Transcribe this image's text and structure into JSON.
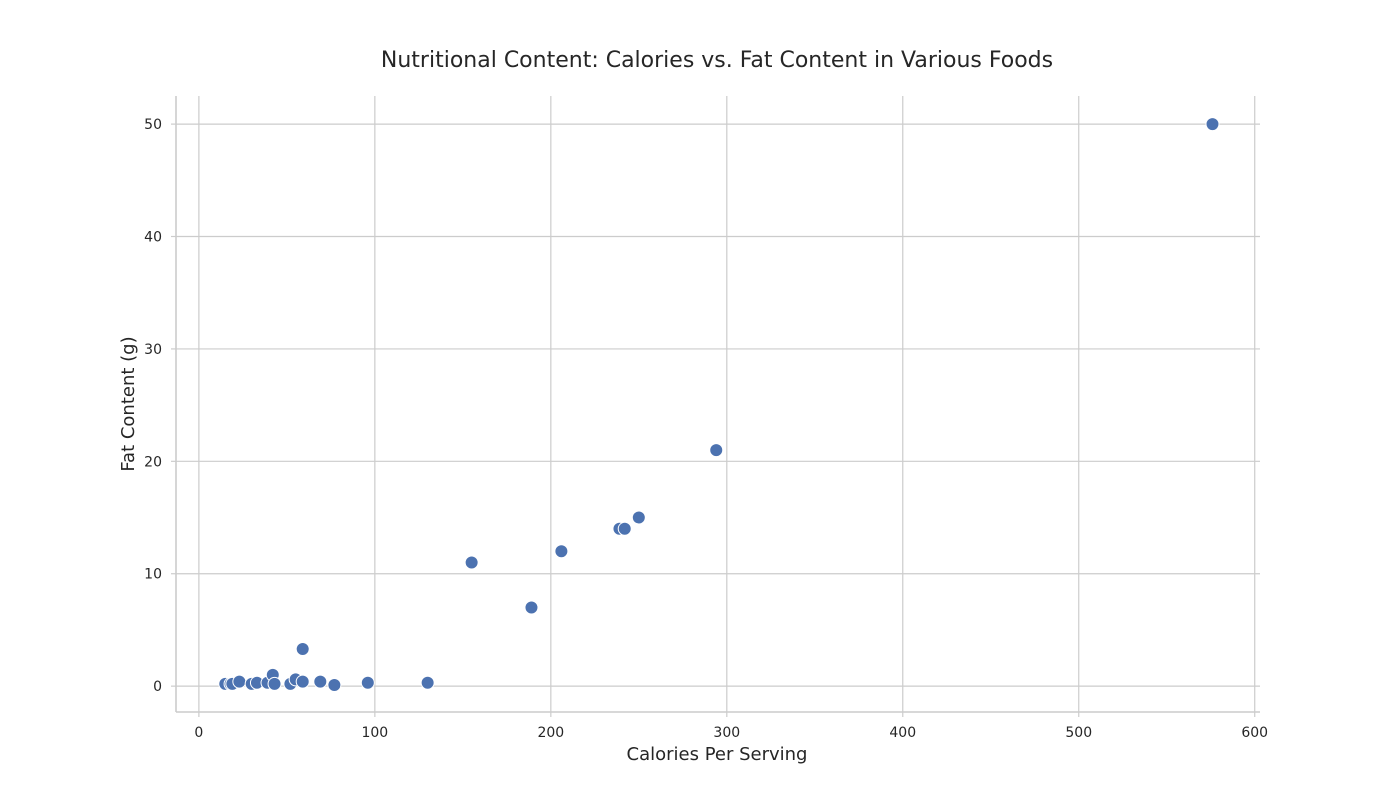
{
  "chart_data": {
    "type": "scatter",
    "title": "Nutritional Content: Calories vs. Fat Content in Various Foods",
    "xlabel": "Calories Per Serving",
    "ylabel": "Fat Content (g)",
    "xlim": [
      -13,
      603
    ],
    "ylim": [
      -2.3,
      52.5
    ],
    "xticks": [
      0,
      100,
      200,
      300,
      400,
      500,
      600
    ],
    "yticks": [
      0,
      10,
      20,
      30,
      40,
      50
    ],
    "grid": true,
    "marker_color": "#4c72b0",
    "marker_edge_color": "#ffffff",
    "points": [
      {
        "x": 15,
        "y": 0.2
      },
      {
        "x": 18,
        "y": 0.2
      },
      {
        "x": 19,
        "y": 0.2
      },
      {
        "x": 23,
        "y": 0.4
      },
      {
        "x": 30,
        "y": 0.2
      },
      {
        "x": 33,
        "y": 0.3
      },
      {
        "x": 39,
        "y": 0.3
      },
      {
        "x": 42,
        "y": 1.0
      },
      {
        "x": 43,
        "y": 0.2
      },
      {
        "x": 52,
        "y": 0.2
      },
      {
        "x": 55,
        "y": 0.6
      },
      {
        "x": 59,
        "y": 3.3
      },
      {
        "x": 59,
        "y": 0.4
      },
      {
        "x": 69,
        "y": 0.4
      },
      {
        "x": 77,
        "y": 0.1
      },
      {
        "x": 96,
        "y": 0.3
      },
      {
        "x": 130,
        "y": 0.3
      },
      {
        "x": 155,
        "y": 11.0
      },
      {
        "x": 189,
        "y": 7.0
      },
      {
        "x": 206,
        "y": 12.0
      },
      {
        "x": 239,
        "y": 14.0
      },
      {
        "x": 242,
        "y": 14.0
      },
      {
        "x": 250,
        "y": 15.0
      },
      {
        "x": 294,
        "y": 21.0
      },
      {
        "x": 576,
        "y": 50.0
      }
    ]
  }
}
